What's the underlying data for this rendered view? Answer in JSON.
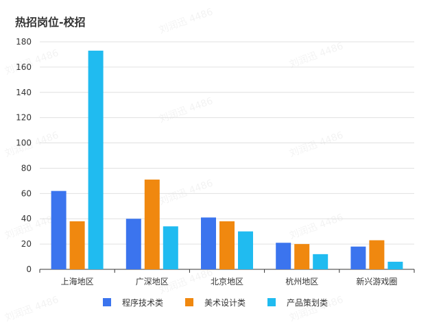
{
  "chart_data": {
    "type": "bar",
    "title": "热招岗位-校招",
    "categories": [
      "上海地区",
      "广深地区",
      "北京地区",
      "杭州地区",
      "新兴游戏圈"
    ],
    "series": [
      {
        "name": "程序技术类",
        "color": "#3b74ee",
        "values": [
          62,
          40,
          41,
          21,
          18
        ]
      },
      {
        "name": "美术设计类",
        "color": "#f0880f",
        "values": [
          38,
          71,
          38,
          20,
          23
        ]
      },
      {
        "name": "产品策划类",
        "color": "#20bbf0",
        "values": [
          173,
          34,
          30,
          12,
          6
        ]
      }
    ],
    "yticks": [
      "0",
      "20",
      "40",
      "60",
      "80",
      "100",
      "120",
      "140",
      "160",
      "180"
    ],
    "ylim": [
      0,
      180
    ],
    "grid": true,
    "legend_position": "bottom-center",
    "watermark": "刘润迅 4486"
  }
}
